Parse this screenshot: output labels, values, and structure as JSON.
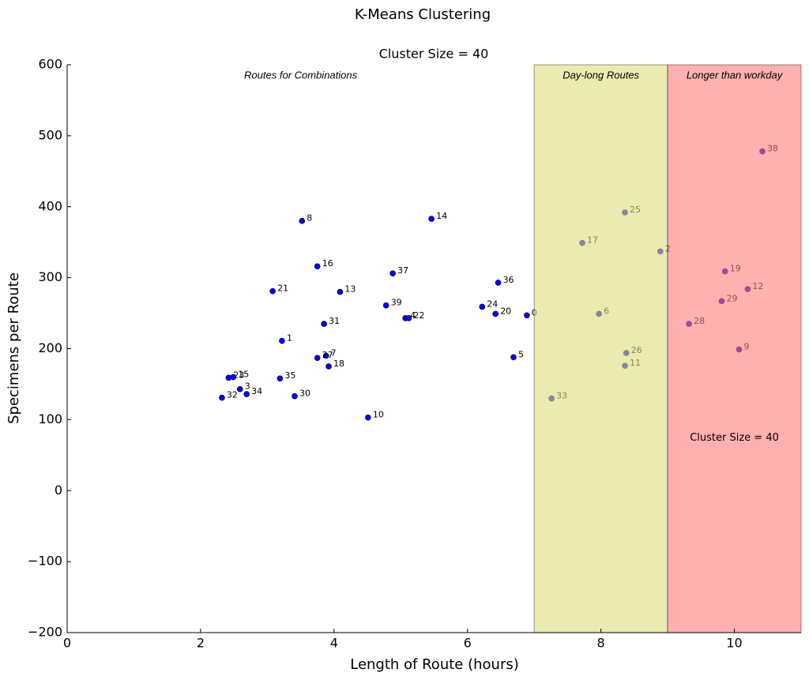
{
  "chart_data": {
    "type": "scatter",
    "title": "K-Means Clustering",
    "subtitle": "Cluster Size = 40",
    "x_label": "Length of Route (hours)",
    "y_label": "Specimens per Route",
    "xlim": [
      0,
      11
    ],
    "ylim": [
      -200,
      600
    ],
    "xticks": [
      0,
      2,
      4,
      6,
      8,
      10
    ],
    "yticks": [
      {
        "value": -200,
        "label": "−200"
      },
      {
        "value": -100,
        "label": "−100"
      },
      0,
      100,
      200,
      300,
      400,
      500,
      600
    ],
    "color": "#0000ff",
    "point_labels": [
      "0",
      "1",
      "2",
      "3",
      "4",
      "5",
      "6",
      "7",
      "8",
      "9",
      "10",
      "11",
      "12",
      "13",
      "14",
      "15",
      "16",
      "17",
      "18",
      "19",
      "20",
      "21",
      "22",
      "23",
      "24",
      "25",
      "26",
      "27",
      "28",
      "29",
      "30",
      "31",
      "32",
      "33",
      "34",
      "35",
      "36",
      "37",
      "38",
      "39"
    ],
    "x": [
      6.89,
      3.22,
      8.89,
      2.59,
      5.07,
      6.69,
      7.97,
      3.88,
      3.52,
      10.07,
      4.51,
      8.36,
      10.2,
      4.09,
      5.46,
      2.49,
      3.75,
      7.72,
      3.92,
      9.86,
      6.42,
      3.08,
      5.12,
      2.42,
      6.22,
      8.36,
      8.38,
      3.75,
      9.32,
      9.81,
      3.41,
      3.85,
      2.32,
      7.26,
      2.69,
      3.19,
      6.46,
      4.88,
      10.42,
      4.78
    ],
    "values": [
      247,
      211,
      337,
      143,
      243,
      188,
      249,
      190,
      380,
      199,
      103,
      176,
      284,
      280,
      383,
      160,
      316,
      349,
      175,
      309,
      249,
      281,
      243,
      159,
      259,
      392,
      194,
      187,
      235,
      267,
      133,
      235,
      131,
      130,
      136,
      158,
      293,
      306,
      478,
      261
    ],
    "base_label": "Routes for Combinations",
    "regions": [
      {
        "x": [
          7,
          9
        ],
        "label": "Day-long Routes",
        "color": "#dedc7b"
      },
      {
        "x": [
          9,
          11
        ],
        "label": "Longer than workday",
        "color": "#ff7b7b"
      }
    ],
    "annotation": "Cluster Size = 40"
  }
}
